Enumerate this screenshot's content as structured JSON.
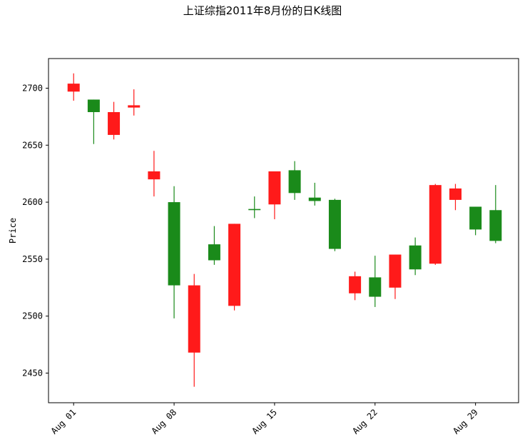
{
  "chart_data": {
    "type": "candlestick",
    "title": "上证综指2011年8月份的日K线图",
    "xlabel": "",
    "ylabel": "Price",
    "ylim": [
      2424,
      2726
    ],
    "y_ticks": [
      2450,
      2500,
      2550,
      2600,
      2650,
      2700
    ],
    "x_ticks": [
      {
        "x": 1,
        "label": "Aug 01"
      },
      {
        "x": 8,
        "label": "Aug 08"
      },
      {
        "x": 15,
        "label": "Aug 15"
      },
      {
        "x": 22,
        "label": "Aug 22"
      },
      {
        "x": 29,
        "label": "Aug 29"
      }
    ],
    "grid": false,
    "colors": {
      "up": "#ff0000",
      "down": "#008000"
    },
    "candles": [
      {
        "x": 1,
        "open": 2697,
        "high": 2713,
        "low": 2689,
        "close": 2704,
        "color": "up"
      },
      {
        "x": 2.4,
        "open": 2690,
        "high": 2690,
        "low": 2651,
        "close": 2679,
        "color": "down"
      },
      {
        "x": 3.8,
        "open": 2659,
        "high": 2688,
        "low": 2655,
        "close": 2679,
        "color": "up"
      },
      {
        "x": 5.2,
        "open": 2683,
        "high": 2699,
        "low": 2676,
        "close": 2685,
        "color": "up"
      },
      {
        "x": 6.6,
        "open": 2620,
        "high": 2645,
        "low": 2605,
        "close": 2627,
        "color": "up"
      },
      {
        "x": 8,
        "open": 2600,
        "high": 2614,
        "low": 2498,
        "close": 2527,
        "color": "down"
      },
      {
        "x": 9.4,
        "open": 2468,
        "high": 2537,
        "low": 2438,
        "close": 2527,
        "color": "up"
      },
      {
        "x": 10.8,
        "open": 2563,
        "high": 2579,
        "low": 2545,
        "close": 2549,
        "color": "down"
      },
      {
        "x": 12.2,
        "open": 2509,
        "high": 2581,
        "low": 2505,
        "close": 2581,
        "color": "up"
      },
      {
        "x": 13.6,
        "open": 2594,
        "high": 2605,
        "low": 2586,
        "close": 2593,
        "color": "down"
      },
      {
        "x": 15,
        "open": 2598,
        "high": 2627,
        "low": 2585,
        "close": 2627,
        "color": "up"
      },
      {
        "x": 16.4,
        "open": 2628,
        "high": 2636,
        "low": 2602,
        "close": 2608,
        "color": "down"
      },
      {
        "x": 17.8,
        "open": 2604,
        "high": 2617,
        "low": 2597,
        "close": 2601,
        "color": "down"
      },
      {
        "x": 19.2,
        "open": 2602,
        "high": 2603,
        "low": 2557,
        "close": 2559,
        "color": "down"
      },
      {
        "x": 20.6,
        "open": 2520,
        "high": 2539,
        "low": 2514,
        "close": 2535,
        "color": "up"
      },
      {
        "x": 22,
        "open": 2534,
        "high": 2553,
        "low": 2508,
        "close": 2517,
        "color": "down"
      },
      {
        "x": 23.4,
        "open": 2525,
        "high": 2554,
        "low": 2515,
        "close": 2554,
        "color": "up"
      },
      {
        "x": 24.8,
        "open": 2562,
        "high": 2569,
        "low": 2536,
        "close": 2541,
        "color": "down"
      },
      {
        "x": 26.2,
        "open": 2546,
        "high": 2616,
        "low": 2545,
        "close": 2615,
        "color": "up"
      },
      {
        "x": 27.6,
        "open": 2602,
        "high": 2616,
        "low": 2593,
        "close": 2612,
        "color": "up"
      },
      {
        "x": 29,
        "open": 2596,
        "high": 2596,
        "low": 2571,
        "close": 2576,
        "color": "down"
      },
      {
        "x": 30.4,
        "open": 2593,
        "high": 2615,
        "low": 2564,
        "close": 2566,
        "color": "down"
      }
    ]
  }
}
